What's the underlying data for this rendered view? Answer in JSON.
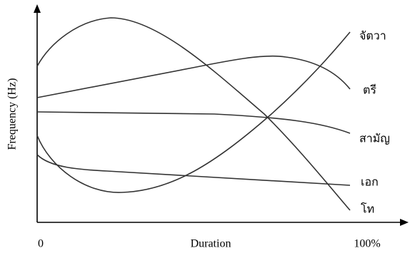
{
  "axes": {
    "y_label": "Frequency (Hz)",
    "x_label": "Duration",
    "x_start": "0",
    "x_end": "100%"
  },
  "curves": [
    {
      "label": "จัตวา"
    },
    {
      "label": "ตรี"
    },
    {
      "label": "สามัญ"
    },
    {
      "label": "เอก"
    },
    {
      "label": "โท"
    }
  ]
}
